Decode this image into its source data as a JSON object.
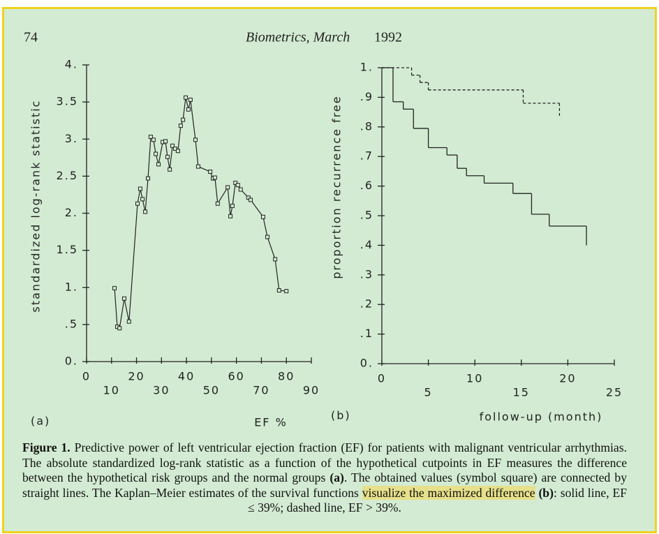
{
  "page_number": "74",
  "journal": "Biometrics, March",
  "year": "1992",
  "chart_data": [
    {
      "type": "line",
      "panel_label": "(a)",
      "x_label": "EF %",
      "y_label": "standardized log-rank statistic",
      "color": "#222",
      "marker": "square",
      "x": [
        11.2,
        12.3,
        13.2,
        15.1,
        17,
        20.4,
        21.5,
        22.4,
        23.5,
        24.6,
        25.7,
        26.8,
        27.7,
        28.8,
        30.5,
        31.6,
        32.4,
        33.3,
        34.4,
        35.5,
        36.6,
        37.7,
        38.6,
        39.7,
        40.8,
        41.6,
        43.6,
        44.7,
        49.5,
        50.6,
        51.4,
        52.5,
        56.5,
        57.6,
        58.4,
        59.6,
        60.6,
        61.7,
        64.8,
        65.7,
        70.7,
        72.4,
        75.5,
        77.1,
        80
      ],
      "values": [
        0.99,
        0.47,
        0.45,
        0.85,
        0.54,
        2.13,
        2.33,
        2.19,
        2.02,
        2.47,
        3.03,
        2.99,
        2.8,
        2.66,
        2.96,
        2.97,
        2.76,
        2.59,
        2.91,
        2.87,
        2.84,
        3.18,
        3.26,
        3.56,
        3.4,
        3.53,
        2.99,
        2.63,
        2.56,
        2.47,
        2.48,
        2.13,
        2.35,
        1.96,
        2.1,
        2.41,
        2.38,
        2.32,
        2.21,
        2.18,
        1.95,
        1.68,
        1.38,
        0.96,
        0.95
      ],
      "xlim": [
        0,
        90
      ],
      "xticks": [
        0,
        10,
        20,
        30,
        40,
        50,
        60,
        70,
        80,
        90
      ],
      "ylim": [
        0,
        4
      ],
      "yticks": [
        {
          "value": 0,
          "label": "0."
        },
        {
          "value": 0.5,
          "label": ".5"
        },
        {
          "value": 1,
          "label": "1."
        },
        {
          "value": 1.5,
          "label": "1.5"
        },
        {
          "value": 2,
          "label": "2."
        },
        {
          "value": 2.5,
          "label": "2.5"
        },
        {
          "value": 3,
          "label": "3."
        },
        {
          "value": 3.5,
          "label": "3.5"
        },
        {
          "value": 4,
          "label": "4."
        }
      ]
    },
    {
      "type": "step",
      "panel_label": "(b)",
      "x_label": "follow-up (month)",
      "y_label": "proportion recurrence free",
      "series": [
        {
          "color": "#222",
          "line_style": "solid",
          "x": [
            0,
            1.2,
            2.3,
            3.4,
            5.0,
            7.0,
            8.1,
            9.1,
            11.0,
            14.1,
            16.1,
            18.0,
            22.0
          ],
          "values": [
            1,
            0.885,
            0.86,
            0.795,
            0.73,
            0.705,
            0.66,
            0.635,
            0.61,
            0.575,
            0.505,
            0.465,
            0.4
          ]
        },
        {
          "color": "#222",
          "line_style": "dashed",
          "x": [
            0,
            3.2,
            4.1,
            5.0,
            15.2,
            19.1
          ],
          "values": [
            1,
            0.975,
            0.95,
            0.925,
            0.88,
            0.835
          ]
        }
      ],
      "xlim": [
        0,
        25
      ],
      "xticks": [
        0,
        5,
        10,
        15,
        20,
        25
      ],
      "ylim": [
        0,
        1
      ],
      "yticks": [
        {
          "value": 0,
          "label": "0."
        },
        {
          "value": 0.1,
          "label": ".1"
        },
        {
          "value": 0.2,
          "label": ".2"
        },
        {
          "value": 0.3,
          "label": ".3"
        },
        {
          "value": 0.4,
          "label": ".4"
        },
        {
          "value": 0.5,
          "label": ".5"
        },
        {
          "value": 0.6,
          "label": ".6"
        },
        {
          "value": 0.7,
          "label": ".7"
        },
        {
          "value": 0.8,
          "label": ".8"
        },
        {
          "value": 0.9,
          "label": ".9"
        },
        {
          "value": 1,
          "label": "1."
        }
      ]
    }
  ],
  "caption": {
    "segments": [
      "Figure 1.",
      "Predictive power of left ventricular ejection fraction (EF) for patients with malignant ventricular arrhythmias. The absolute standardized log-rank statistic as a function of the hypothetical cutpoints in EF measures the difference between the hypothetical risk groups and the normal groups",
      "(a)",
      ". The obtained values (symbol square) are connected by straight lines. The Kaplan–Meier estimates of the survival functions",
      "visualize the maximized difference",
      "(b)",
      ": solid line, EF ≤ 39%; dashed line, EF > 39%."
    ]
  }
}
